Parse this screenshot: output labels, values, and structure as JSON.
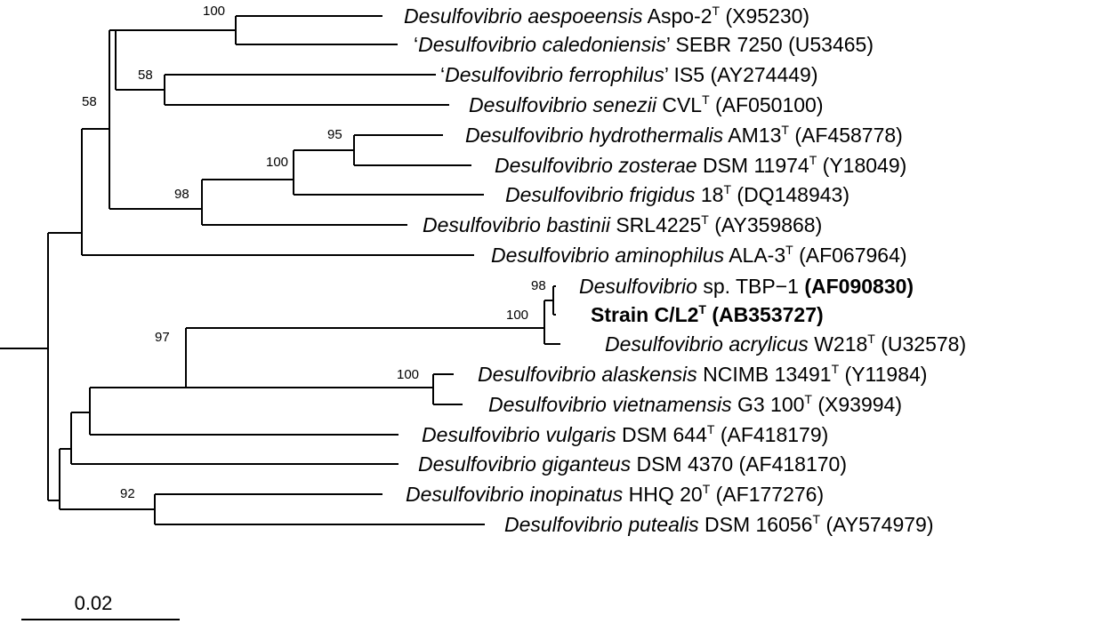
{
  "tree": {
    "taxa": [
      {
        "genus": "Desulfovibrio",
        "species": "aespoeensis",
        "strain": "Aspo-2",
        "type_strain": true,
        "accession": "(X95230)",
        "quoted": false,
        "bold": false
      },
      {
        "genus": "Desulfovibrio",
        "species": "caledoniensis",
        "strain": "SEBR 7250",
        "type_strain": false,
        "accession": "(U53465)",
        "quoted": true,
        "bold": false
      },
      {
        "genus": "Desulfovibrio",
        "species": "ferrophilus",
        "strain": "IS5",
        "type_strain": false,
        "accession": "(AY274449)",
        "quoted": true,
        "bold": false
      },
      {
        "genus": "Desulfovibrio",
        "species": "senezii",
        "strain": "CVL",
        "type_strain": true,
        "accession": "(AF050100)",
        "quoted": false,
        "bold": false
      },
      {
        "genus": "Desulfovibrio",
        "species": "hydrothermalis",
        "strain": "AM13",
        "type_strain": true,
        "accession": "(AF458778)",
        "quoted": false,
        "bold": false
      },
      {
        "genus": "Desulfovibrio",
        "species": "zosterae",
        "strain": "DSM 11974",
        "type_strain": true,
        "accession": "(Y18049)",
        "quoted": false,
        "bold": false
      },
      {
        "genus": "Desulfovibrio",
        "species": "frigidus",
        "strain": "18",
        "type_strain": true,
        "accession": "(DQ148943)",
        "quoted": false,
        "bold": false
      },
      {
        "genus": "Desulfovibrio",
        "species": "bastinii",
        "strain": "SRL4225",
        "type_strain": true,
        "accession": "(AY359868)",
        "quoted": false,
        "bold": false
      },
      {
        "genus": "Desulfovibrio",
        "species": "aminophilus",
        "strain": "ALA-3",
        "type_strain": true,
        "accession": "(AF067964)",
        "quoted": false,
        "bold": false
      },
      {
        "genus": "Desulfovibrio",
        "species": "",
        "plain": "sp.",
        "strain": "TBP−1",
        "type_strain": false,
        "accession": "(AF090830)",
        "quoted": false,
        "bold": false,
        "accession_bold": true
      },
      {
        "genus": "",
        "species": "",
        "plain": "Strain C/L2",
        "strain": "",
        "type_strain": true,
        "accession": "(AB353727)",
        "quoted": false,
        "bold": true
      },
      {
        "genus": "Desulfovibrio",
        "species": "acrylicus",
        "strain": "W218",
        "type_strain": true,
        "accession": "(U32578)",
        "quoted": false,
        "bold": false
      },
      {
        "genus": "Desulfovibrio",
        "species": "alaskensis",
        "strain": "NCIMB 13491",
        "type_strain": true,
        "accession": "(Y11984)",
        "quoted": false,
        "bold": false
      },
      {
        "genus": "Desulfovibrio",
        "species": "vietnamensis",
        "strain": "G3 100",
        "type_strain": true,
        "accession": "(X93994)",
        "quoted": false,
        "bold": false
      },
      {
        "genus": "Desulfovibrio",
        "species": "vulgaris",
        "strain": "DSM 644",
        "type_strain": true,
        "accession": "(AF418179)",
        "quoted": false,
        "bold": false
      },
      {
        "genus": "Desulfovibrio",
        "species": "giganteus",
        "strain": "DSM 4370",
        "type_strain": false,
        "accession": "(AF418170)",
        "quoted": false,
        "bold": false
      },
      {
        "genus": "Desulfovibrio",
        "species": "inopinatus",
        "strain": "HHQ 20",
        "type_strain": true,
        "accession": "(AF177276)",
        "quoted": false,
        "bold": false
      },
      {
        "genus": "Desulfovibrio",
        "species": "putealis",
        "strain": "DSM 16056",
        "type_strain": true,
        "accession": "(AY574979)",
        "quoted": false,
        "bold": false
      }
    ],
    "type_strain_mark": "T",
    "bootstrap_values": [
      "100",
      "58",
      "58",
      "95",
      "100",
      "98",
      "98",
      "100",
      "97",
      "100",
      "92"
    ],
    "scale_bar_label": "0.02"
  }
}
